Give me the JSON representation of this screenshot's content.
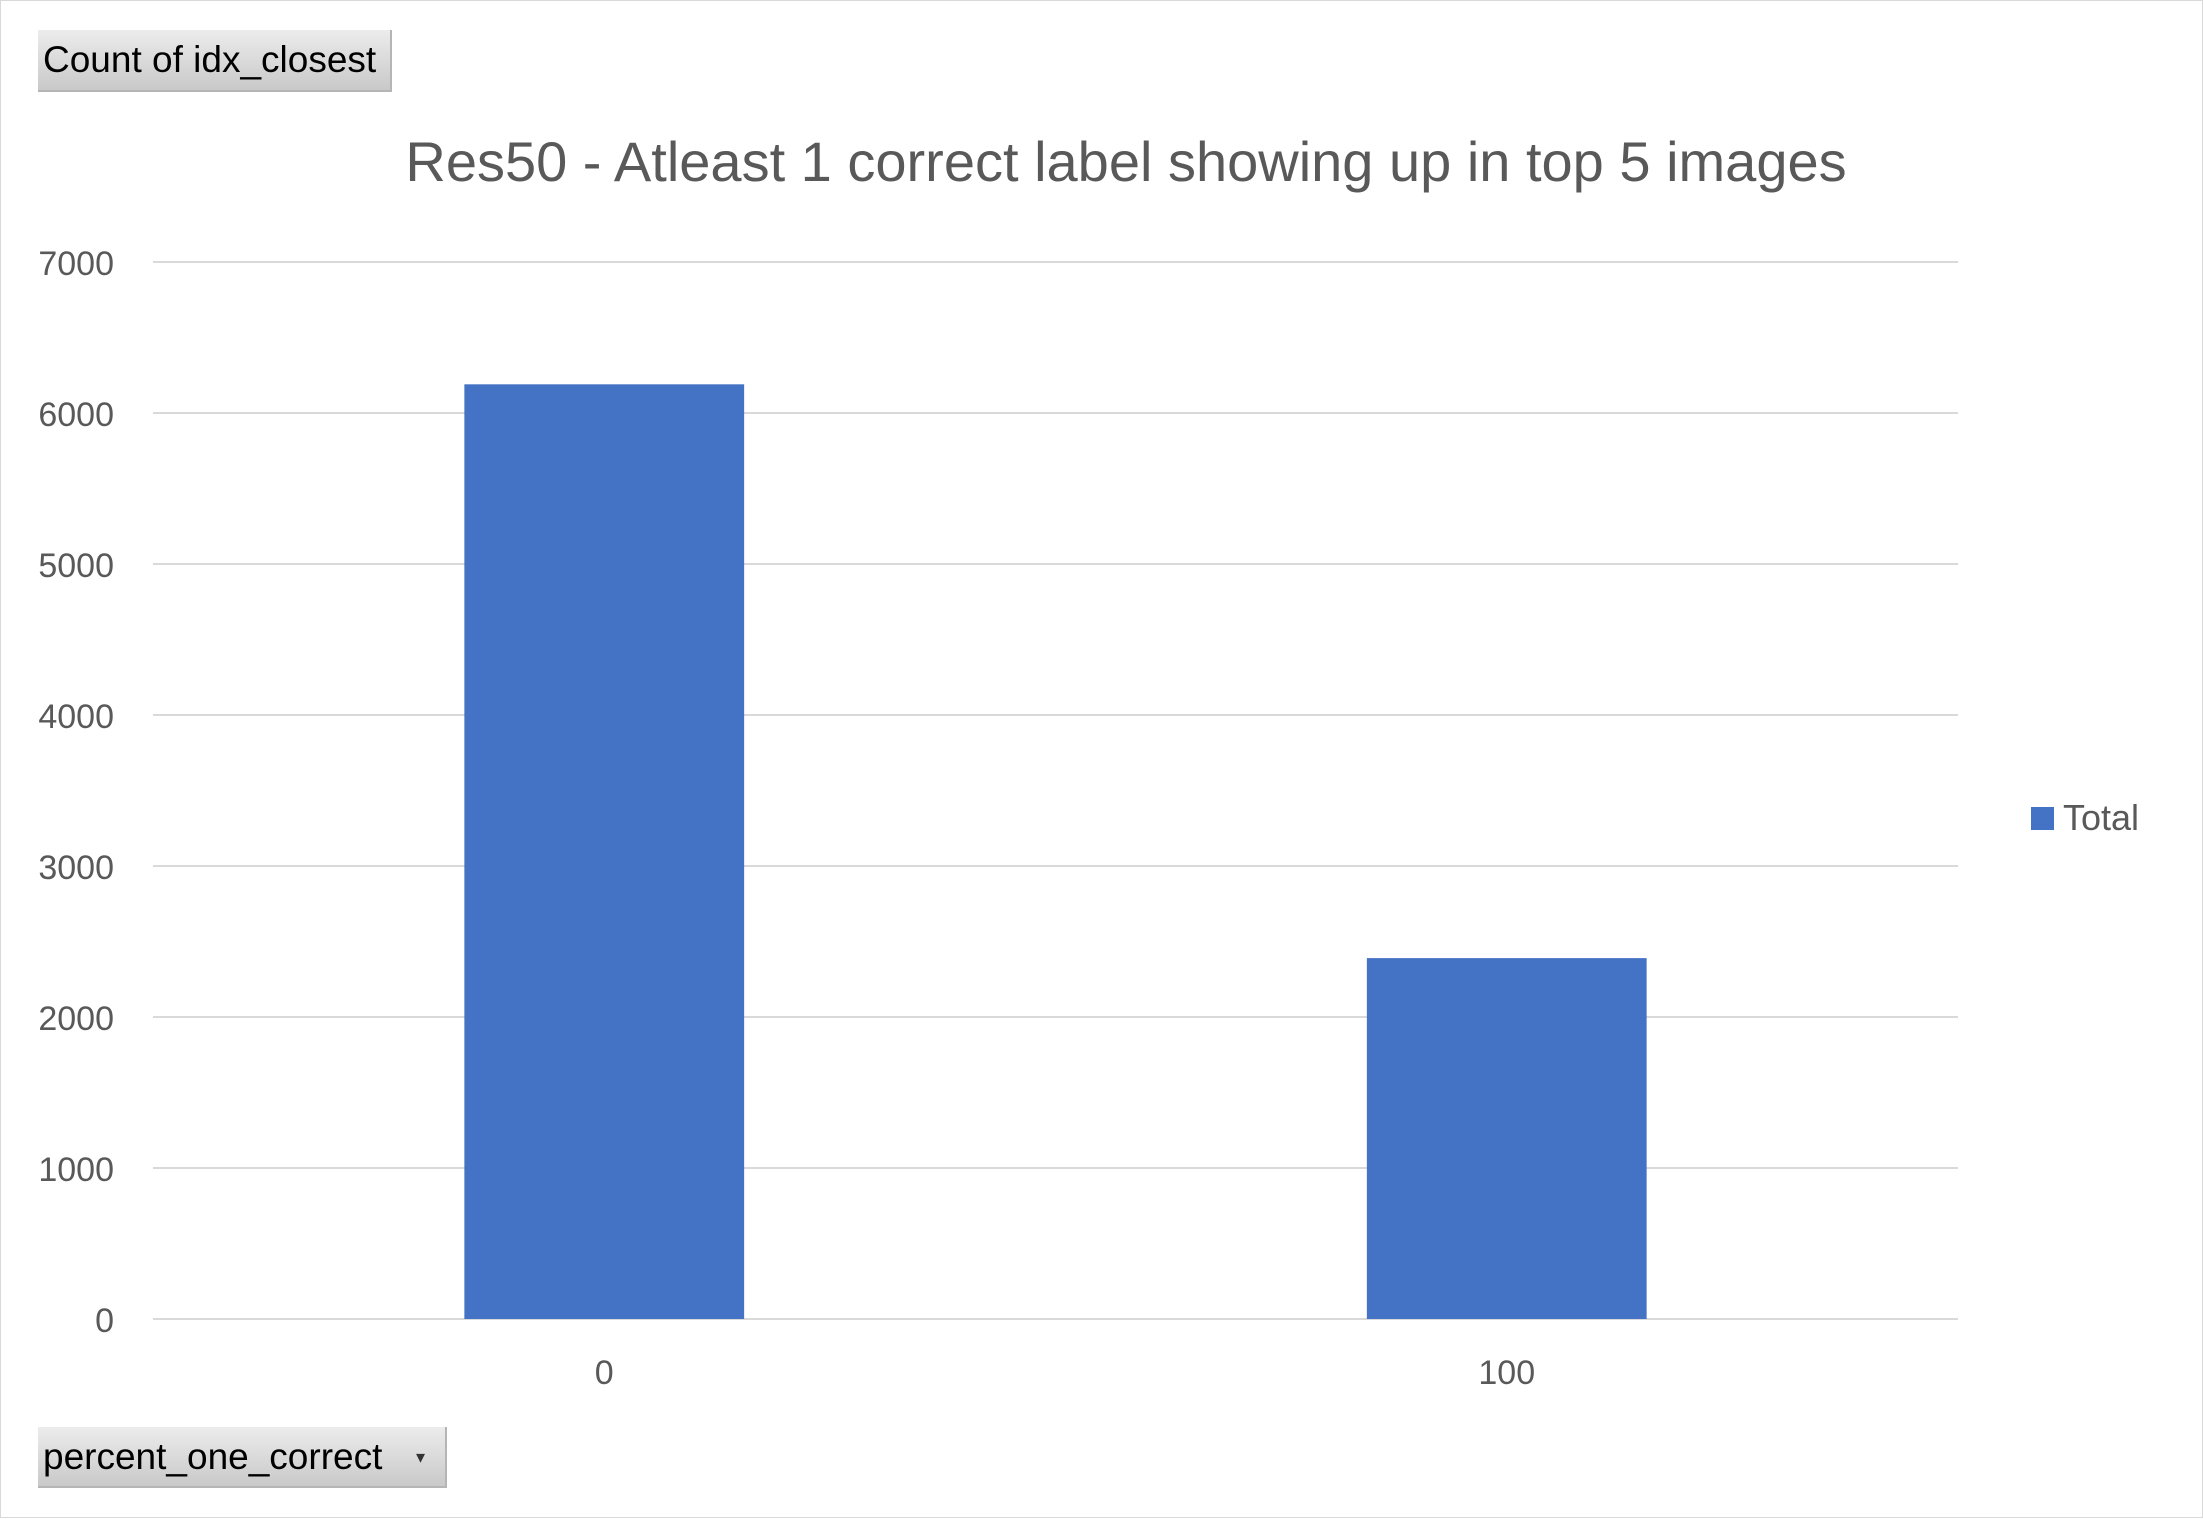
{
  "pivot_buttons": {
    "value_field": "Count of idx_closest",
    "axis_field": "percent_one_correct",
    "dropdown_icon": "chevron-down-icon"
  },
  "colors": {
    "series": "#4472c4",
    "gridline": "#d9d9d9",
    "text": "#595959"
  },
  "chart_data": {
    "type": "bar",
    "title": "Res50 - Atleast 1 correct label showing up in top 5 images",
    "xlabel": "",
    "ylabel": "",
    "categories": [
      "0",
      "100"
    ],
    "series": [
      {
        "name": "Total",
        "values": [
          6190,
          2390
        ]
      }
    ],
    "ylim": [
      0,
      7000
    ],
    "yticks": [
      0,
      1000,
      2000,
      3000,
      4000,
      5000,
      6000,
      7000
    ],
    "grid": true,
    "legend": "right"
  }
}
